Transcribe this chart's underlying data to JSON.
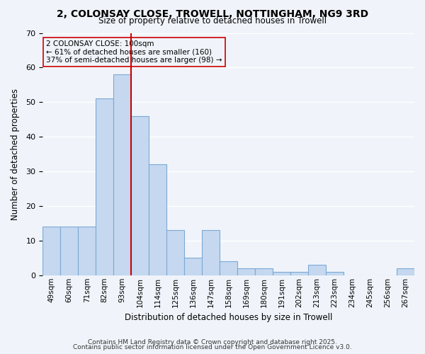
{
  "title1": "2, COLONSAY CLOSE, TROWELL, NOTTINGHAM, NG9 3RD",
  "title2": "Size of property relative to detached houses in Trowell",
  "xlabel": "Distribution of detached houses by size in Trowell",
  "ylabel": "Number of detached properties",
  "bar_labels": [
    "49sqm",
    "60sqm",
    "71sqm",
    "82sqm",
    "93sqm",
    "104sqm",
    "114sqm",
    "125sqm",
    "136sqm",
    "147sqm",
    "158sqm",
    "169sqm",
    "180sqm",
    "191sqm",
    "202sqm",
    "213sqm",
    "223sqm",
    "234sqm",
    "245sqm",
    "256sqm",
    "267sqm"
  ],
  "bar_values": [
    14,
    14,
    14,
    51,
    58,
    46,
    32,
    13,
    5,
    13,
    4,
    2,
    2,
    1,
    1,
    3,
    1,
    0,
    0,
    0,
    2
  ],
  "bar_color": "#c5d8f0",
  "bar_edgecolor": "#7ca9d4",
  "vline_x": 5,
  "vline_color": "#cc0000",
  "ylim": [
    0,
    70
  ],
  "yticks": [
    0,
    10,
    20,
    30,
    40,
    50,
    60,
    70
  ],
  "annotation_title": "2 COLONSAY CLOSE: 100sqm",
  "annotation_line1": "← 61% of detached houses are smaller (160)",
  "annotation_line2": "37% of semi-detached houses are larger (98) →",
  "annotation_box_edgecolor": "#cc0000",
  "footnote1": "Contains HM Land Registry data © Crown copyright and database right 2025.",
  "footnote2": "Contains public sector information licensed under the Open Government Licence v3.0.",
  "background_color": "#f0f4fa",
  "grid_color": "#ffffff"
}
